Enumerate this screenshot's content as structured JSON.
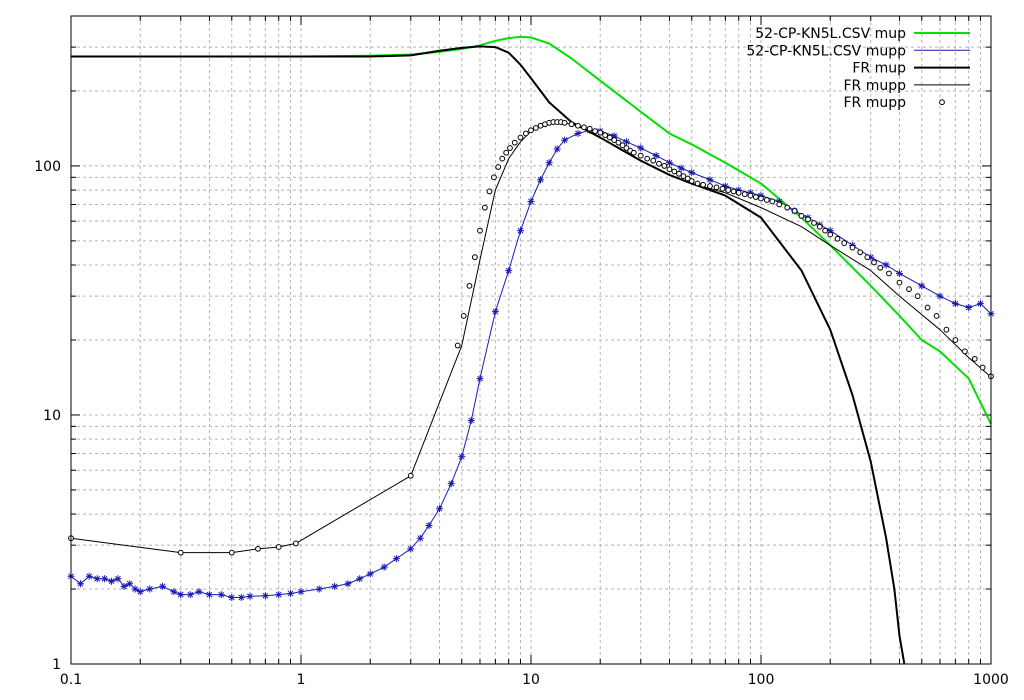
{
  "chart_data": {
    "type": "line",
    "title": "",
    "xlabel": "",
    "ylabel": "",
    "x_scale": "log",
    "y_scale": "log",
    "xlim": [
      0.1,
      1000
    ],
    "ylim": [
      1,
      400
    ],
    "grid": true,
    "legend_position": "top-right",
    "x_ticks": [
      "0.1",
      "1",
      "10",
      "100",
      "1000"
    ],
    "y_ticks": [
      "1",
      "10",
      "100"
    ],
    "series": [
      {
        "name": "52-CP-KN5L.CSV mup",
        "color": "#00e000",
        "style": "line",
        "width": 2,
        "x": [
          0.1,
          0.2,
          0.5,
          1,
          2,
          3,
          4,
          5,
          6,
          7,
          8,
          9,
          10,
          12,
          15,
          20,
          30,
          40,
          50,
          70,
          100,
          150,
          200,
          300,
          400,
          500,
          600,
          800,
          1000
        ],
        "y": [
          275,
          275,
          275,
          275,
          277,
          280,
          287,
          295,
          305,
          318,
          326,
          330,
          328,
          310,
          270,
          220,
          165,
          135,
          122,
          103,
          85,
          62,
          48,
          33,
          25,
          20,
          18,
          14,
          9.2
        ]
      },
      {
        "name": "52-CP-KN5L.CSV mupp",
        "color": "#1a1ab4",
        "style": "line",
        "width": 1,
        "x": [
          0.1,
          0.11,
          0.12,
          0.13,
          0.14,
          0.15,
          0.16,
          0.17,
          0.18,
          0.19,
          0.2,
          0.22,
          0.25,
          0.28,
          0.3,
          0.33,
          0.36,
          0.4,
          0.45,
          0.5,
          0.55,
          0.6,
          0.7,
          0.8,
          0.9,
          1,
          1.2,
          1.4,
          1.6,
          1.8,
          2,
          2.3,
          2.6,
          3,
          3.3,
          3.6,
          4,
          4.5,
          5,
          5.5,
          6,
          7,
          8,
          9,
          10,
          11,
          12,
          13,
          14,
          16,
          18,
          20,
          23,
          26,
          30,
          35,
          40,
          45,
          50,
          60,
          70,
          80,
          90,
          100,
          120,
          140,
          160,
          180,
          200,
          250,
          300,
          350,
          400,
          500,
          600,
          700,
          800,
          900,
          1000
        ],
        "y": [
          2.25,
          2.1,
          2.25,
          2.2,
          2.2,
          2.15,
          2.2,
          2.05,
          2.1,
          2.0,
          1.95,
          2.0,
          2.05,
          1.95,
          1.9,
          1.9,
          1.95,
          1.9,
          1.9,
          1.85,
          1.85,
          1.87,
          1.88,
          1.9,
          1.92,
          1.95,
          2.0,
          2.05,
          2.1,
          2.2,
          2.3,
          2.45,
          2.65,
          2.9,
          3.2,
          3.6,
          4.2,
          5.3,
          6.8,
          9.5,
          14,
          26,
          38,
          55,
          72,
          88,
          103,
          117,
          127,
          135,
          139,
          138,
          132,
          125,
          118,
          110,
          103,
          98,
          94,
          88,
          83,
          80,
          78,
          76,
          72,
          66,
          62,
          58,
          55,
          48,
          43,
          40,
          37,
          33,
          30,
          28,
          27,
          28,
          25.5
        ],
        "marker": "asterisk",
        "marker_x": [
          0.1,
          0.11,
          0.12,
          0.13,
          0.14,
          0.15,
          0.16,
          0.17,
          0.18,
          0.19,
          0.2,
          0.22,
          0.25,
          0.28,
          0.3,
          0.33,
          0.36,
          0.4,
          0.45,
          0.5,
          0.55,
          0.6,
          0.7,
          0.8,
          0.9,
          1,
          1.2,
          1.4,
          1.6,
          1.8,
          2,
          2.3,
          2.6,
          3,
          3.3,
          3.6,
          4,
          4.5,
          5,
          5.5,
          6,
          7,
          8,
          9,
          10,
          11,
          12,
          13,
          14,
          16,
          18,
          20,
          23,
          26,
          30,
          35,
          40,
          45,
          50,
          60,
          70,
          80,
          90,
          100,
          120,
          140,
          160,
          180,
          200,
          250,
          300,
          350,
          400,
          500,
          600,
          700,
          800,
          900,
          1000
        ]
      },
      {
        "name": "FR mup",
        "color": "#000000",
        "style": "line",
        "width": 2,
        "x": [
          0.1,
          0.2,
          0.5,
          1,
          2,
          3,
          4,
          5,
          6,
          7,
          8,
          9,
          10,
          12,
          15,
          20,
          30,
          40,
          50,
          70,
          100,
          150,
          200,
          250,
          300,
          350,
          380,
          400,
          420
        ],
        "y": [
          275,
          275,
          275,
          275,
          275,
          278,
          290,
          298,
          302,
          300,
          285,
          255,
          225,
          180,
          150,
          130,
          105,
          92,
          85,
          76,
          62,
          38,
          22,
          12,
          6.5,
          3.2,
          2.0,
          1.3,
          1.0
        ]
      },
      {
        "name": "FR mupp",
        "color": "#000000",
        "style": "line",
        "width": 1,
        "x": [
          0.1,
          0.3,
          0.5,
          0.65,
          0.8,
          0.95,
          3,
          5,
          6,
          7,
          8,
          9,
          10,
          11,
          12,
          13,
          14,
          15,
          17,
          20,
          25,
          30,
          40,
          50,
          70,
          100,
          150,
          200,
          300,
          400,
          600,
          800,
          1000
        ],
        "y": [
          3.2,
          2.8,
          2.8,
          2.9,
          2.95,
          3.05,
          5.7,
          19,
          42,
          80,
          107,
          125,
          138,
          145,
          149,
          150,
          149,
          147,
          142,
          130,
          115,
          105,
          92,
          85,
          78,
          68,
          57,
          48,
          38,
          30,
          22,
          17,
          14.2
        ]
      },
      {
        "name": "FR mupp",
        "color": "#000000",
        "style": "points",
        "marker": "circle",
        "x": [
          0.1,
          0.3,
          0.5,
          0.65,
          0.8,
          0.95,
          3,
          4.8,
          5.1,
          5.4,
          5.7,
          6.0,
          6.3,
          6.6,
          6.9,
          7.2,
          7.5,
          7.8,
          8.1,
          8.5,
          9,
          9.5,
          10,
          10.5,
          11,
          11.5,
          12,
          12.5,
          13,
          13.5,
          14,
          15,
          16,
          17,
          18,
          19,
          20,
          21,
          22,
          23,
          24,
          25,
          26,
          27,
          28,
          30,
          32,
          34,
          36,
          38,
          40,
          42,
          44,
          46,
          48,
          50,
          53,
          56,
          60,
          64,
          68,
          72,
          76,
          80,
          85,
          90,
          95,
          100,
          106,
          112,
          120,
          130,
          140,
          150,
          160,
          170,
          180,
          190,
          200,
          215,
          230,
          250,
          270,
          290,
          310,
          330,
          360,
          400,
          440,
          480,
          530,
          580,
          640,
          700,
          770,
          850,
          920,
          1000
        ],
        "y": [
          3.2,
          2.8,
          2.8,
          2.9,
          2.95,
          3.05,
          5.7,
          19,
          25,
          33,
          43,
          55,
          68,
          79,
          90,
          99,
          107,
          113,
          118,
          124,
          130,
          135,
          139,
          142,
          145,
          147,
          149,
          150,
          150,
          150,
          149,
          147,
          145,
          143,
          141,
          138,
          136,
          133,
          130,
          127,
          124,
          121,
          118,
          115,
          113,
          110,
          107,
          105,
          102,
          100,
          97,
          95,
          93,
          91,
          89,
          87,
          85,
          84,
          83,
          82,
          81,
          80,
          79,
          78,
          77,
          76,
          75,
          74,
          73,
          72,
          70,
          68,
          66,
          63,
          61,
          59,
          57,
          55,
          53,
          51,
          49,
          47,
          45,
          43,
          41,
          39,
          37,
          34,
          32,
          30,
          27,
          25,
          22,
          20,
          18,
          16.8,
          15.5,
          14.3
        ]
      }
    ]
  }
}
